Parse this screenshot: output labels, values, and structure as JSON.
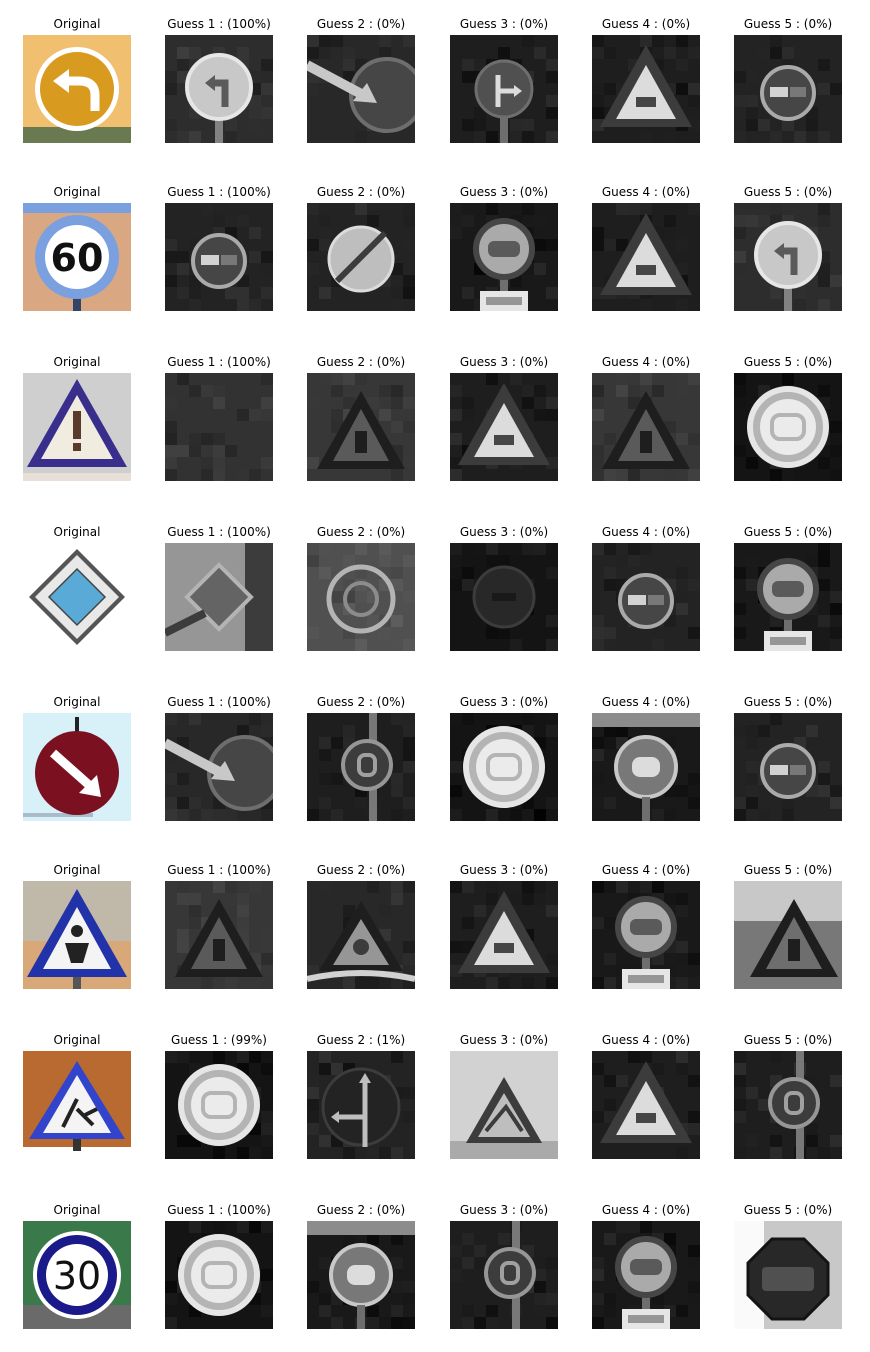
{
  "rows": [
    {
      "original": {
        "title": "Original",
        "sign": "keep-left-arrow",
        "bg": "#f0c070",
        "fg": "#d99a20",
        "rim": "#d99a20",
        "sky": "#f5c77a"
      },
      "guesses": [
        {
          "title": "Guess 1 : (100%)",
          "sign": "turn-left-only"
        },
        {
          "title": "Guess 2 : (0%)",
          "sign": "keep-right"
        },
        {
          "title": "Guess 3 : (0%)",
          "sign": "straight-or-right"
        },
        {
          "title": "Guess 4 : (0%)",
          "sign": "warning-triangle"
        },
        {
          "title": "Guess 5 : (0%)",
          "sign": "no-passing"
        }
      ]
    },
    {
      "original": {
        "title": "Original",
        "sign": "speed-60",
        "text": "60",
        "bg": "#d9a882",
        "fg": "#ffffff",
        "rim": "#7aa0e0",
        "sky": "#d9a882"
      },
      "guesses": [
        {
          "title": "Guess 1 : (100%)",
          "sign": "no-passing"
        },
        {
          "title": "Guess 2 : (0%)",
          "sign": "end-restriction"
        },
        {
          "title": "Guess 3 : (0%)",
          "sign": "speed-limit-plate"
        },
        {
          "title": "Guess 4 : (0%)",
          "sign": "warning-triangle"
        },
        {
          "title": "Guess 5 : (0%)",
          "sign": "turn-left-only"
        }
      ]
    },
    {
      "original": {
        "title": "Original",
        "sign": "general-caution",
        "bg": "#c8c8c8",
        "fg": "#ffffff",
        "rim": "#3a2e8c",
        "sky": "#d8d8d8"
      },
      "guesses": [
        {
          "title": "Guess 1 : (100%)",
          "sign": "general-caution"
        },
        {
          "title": "Guess 2 : (0%)",
          "sign": "warning-dark"
        },
        {
          "title": "Guess 3 : (0%)",
          "sign": "warning-triangle"
        },
        {
          "title": "Guess 4 : (0%)",
          "sign": "warning-dark"
        },
        {
          "title": "Guess 5 : (0%)",
          "sign": "speed-30-gray"
        }
      ]
    },
    {
      "original": {
        "title": "Original",
        "sign": "priority-road",
        "bg": "#ffffff",
        "fg": "#5aaad8",
        "rim": "#555555",
        "sky": "#ffffff"
      },
      "guesses": [
        {
          "title": "Guess 1 : (100%)",
          "sign": "priority-gray"
        },
        {
          "title": "Guess 2 : (0%)",
          "sign": "roundabout"
        },
        {
          "title": "Guess 3 : (0%)",
          "sign": "dark-circle"
        },
        {
          "title": "Guess 4 : (0%)",
          "sign": "no-passing"
        },
        {
          "title": "Guess 5 : (0%)",
          "sign": "speed-limit-plate"
        }
      ]
    },
    {
      "original": {
        "title": "Original",
        "sign": "keep-right-red",
        "bg": "#d8f0f8",
        "fg": "#ffffff",
        "rim": "#7a1020",
        "sky": "#d8f0f8"
      },
      "guesses": [
        {
          "title": "Guess 1 : (100%)",
          "sign": "keep-right"
        },
        {
          "title": "Guess 2 : (0%)",
          "sign": "speed-20"
        },
        {
          "title": "Guess 3 : (0%)",
          "sign": "speed-30-gray"
        },
        {
          "title": "Guess 4 : (0%)",
          "sign": "speed-50"
        },
        {
          "title": "Guess 5 : (0%)",
          "sign": "no-passing"
        }
      ]
    },
    {
      "original": {
        "title": "Original",
        "sign": "pedestrian-triangle",
        "bg": "#c0b8a8",
        "fg": "#ffffff",
        "rim": "#2233aa",
        "sky": "#c8b8a0"
      },
      "guesses": [
        {
          "title": "Guess 1 : (100%)",
          "sign": "warning-dark"
        },
        {
          "title": "Guess 2 : (0%)",
          "sign": "warning-noisy"
        },
        {
          "title": "Guess 3 : (0%)",
          "sign": "warning-triangle"
        },
        {
          "title": "Guess 4 : (0%)",
          "sign": "speed-limit-plate"
        },
        {
          "title": "Guess 5 : (0%)",
          "sign": "warning-dark-light"
        }
      ]
    },
    {
      "original": {
        "title": "Original",
        "sign": "road-work",
        "bg": "#b86a30",
        "fg": "#ffffff",
        "rim": "#3344cc",
        "sky": "#b86a30"
      },
      "guesses": [
        {
          "title": "Guess 1 : (99%)",
          "sign": "speed-30-gray"
        },
        {
          "title": "Guess 2 : (1%)",
          "sign": "straight-or-left"
        },
        {
          "title": "Guess 3 : (0%)",
          "sign": "warning-light"
        },
        {
          "title": "Guess 4 : (0%)",
          "sign": "warning-triangle"
        },
        {
          "title": "Guess 5 : (0%)",
          "sign": "speed-20"
        }
      ]
    },
    {
      "original": {
        "title": "Original",
        "sign": "speed-30",
        "text": "30",
        "bg": "#3a7a4a",
        "fg": "#ffffff",
        "rim": "#1a1a8a",
        "sky": "#3a6a40"
      },
      "guesses": [
        {
          "title": "Guess 1 : (100%)",
          "sign": "speed-30-gray"
        },
        {
          "title": "Guess 2 : (0%)",
          "sign": "speed-50"
        },
        {
          "title": "Guess 3 : (0%)",
          "sign": "speed-20"
        },
        {
          "title": "Guess 4 : (0%)",
          "sign": "speed-limit-plate"
        },
        {
          "title": "Guess 5 : (0%)",
          "sign": "stop"
        }
      ]
    }
  ]
}
